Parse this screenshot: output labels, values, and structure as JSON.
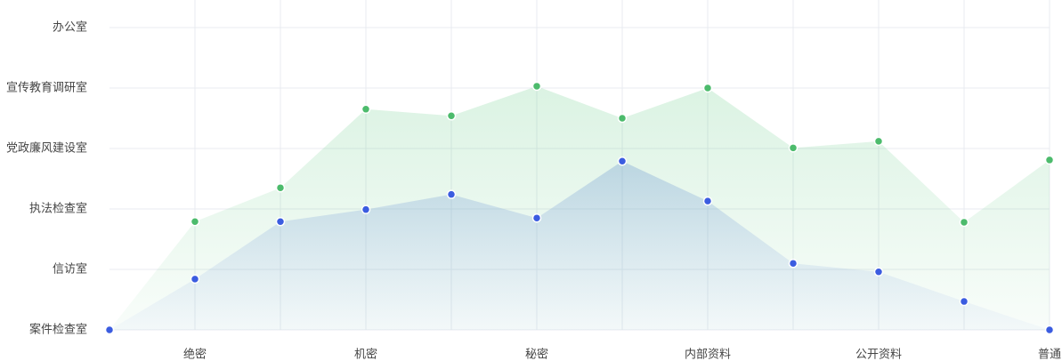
{
  "chart_data": {
    "type": "area",
    "categories": [
      null,
      "绝密",
      null,
      "机密",
      null,
      "秘密",
      null,
      "内部资料",
      null,
      "公开资料",
      null,
      "普通"
    ],
    "series": [
      {
        "color": "#4cbb6c",
        "values": [
          0,
          1.79,
          2.35,
          3.65,
          3.54,
          4.03,
          3.5,
          4.0,
          3.01,
          3.12,
          1.78,
          2.81
        ]
      },
      {
        "color": "#3b5ce0",
        "values": [
          0,
          0.84,
          1.79,
          1.99,
          2.24,
          1.85,
          2.79,
          2.13,
          1.1,
          0.96,
          0.47,
          0
        ]
      }
    ],
    "ylim": [
      0,
      5
    ],
    "yticks": [
      {
        "value": 0,
        "label": "案件检查室"
      },
      {
        "value": 1,
        "label": "信访室"
      },
      {
        "value": 2,
        "label": "执法检查室"
      },
      {
        "value": 3,
        "label": "党政廉风建设室"
      },
      {
        "value": 4,
        "label": "宣传教育调研室"
      },
      {
        "value": 5,
        "label": "办公室"
      }
    ],
    "grid": true
  }
}
